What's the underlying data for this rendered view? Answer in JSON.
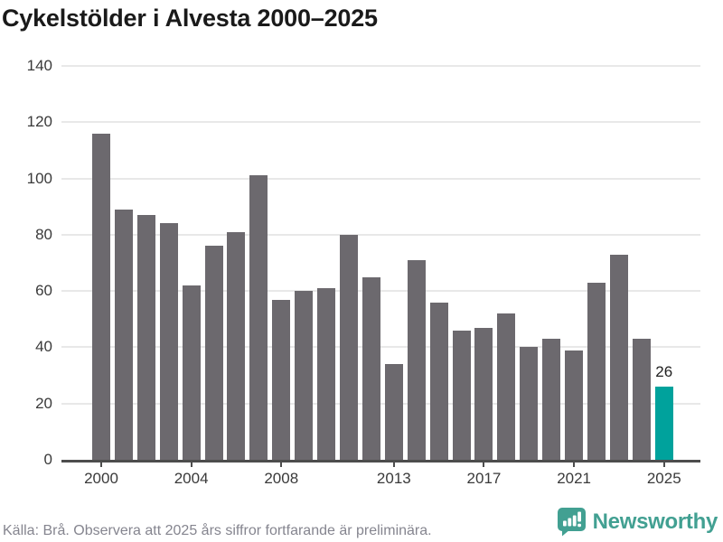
{
  "header": {
    "title": "Cykelstölder i Alvesta 2000–2025"
  },
  "chart_data": {
    "type": "bar",
    "title": "Cykelstölder i Alvesta 2000–2025",
    "categories": [
      "2000",
      "2001",
      "2002",
      "2003",
      "2004",
      "2005",
      "2006",
      "2007",
      "2008",
      "2009",
      "2010",
      "2011",
      "2012",
      "2013",
      "2014",
      "2015",
      "2016",
      "2017",
      "2018",
      "2019",
      "2020",
      "2021",
      "2022",
      "2023",
      "2024",
      "2025"
    ],
    "values": [
      116,
      89,
      87,
      84,
      62,
      76,
      81,
      101,
      57,
      60,
      61,
      80,
      65,
      34,
      71,
      56,
      46,
      47,
      52,
      40,
      43,
      39,
      63,
      73,
      43,
      26
    ],
    "highlight": {
      "index": 25,
      "category": "2025",
      "value_label": "26"
    },
    "xlabel": "",
    "ylabel": "",
    "ylim": [
      0,
      140
    ],
    "yticks": [
      0,
      20,
      40,
      60,
      80,
      100,
      120,
      140
    ],
    "xtick_labels": [
      "2000",
      "2004",
      "2008",
      "2013",
      "2017",
      "2021",
      "2025"
    ],
    "grid": true,
    "legend": "none",
    "bar_color": "#6c696e",
    "highlight_color": "#00a29c"
  },
  "footer": {
    "source": "Källa: Brå. Observera att 2025 års siffror fortfarande är preliminära.",
    "brand": "Newsworthy",
    "logo_icon": "newsworthy-bar-chart-speech-bubble-icon"
  },
  "colors": {
    "background": "#ffffff",
    "title_text": "#1a1a1a",
    "tick_text": "#3a3a3a",
    "grid": "#e8e8e8",
    "axis": "#4d4d4d",
    "bar": "#6c696e",
    "highlight": "#00a29c",
    "footer_text": "#85858f",
    "brand": "#42a092"
  }
}
